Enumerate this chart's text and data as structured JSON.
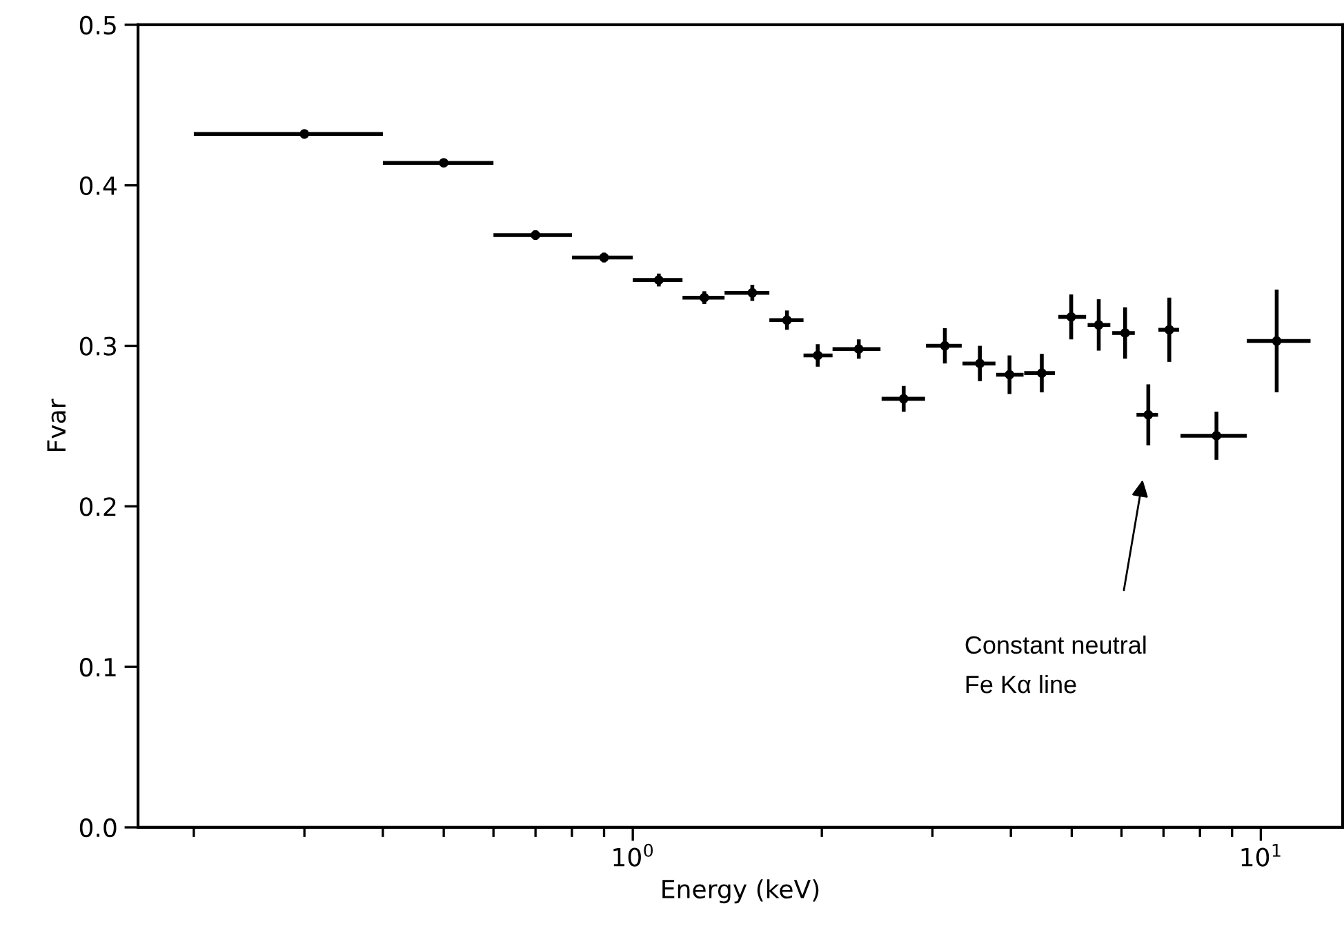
{
  "chart_data": {
    "type": "scatter",
    "xlabel": "Energy (keV)",
    "ylabel": "Fvar",
    "log": "x",
    "x": [
      0.3,
      0.5,
      0.7,
      0.9,
      1.1,
      1.3,
      1.55,
      1.76,
      1.97,
      2.29,
      2.7,
      3.14,
      3.57,
      3.98,
      4.48,
      4.99,
      5.52,
      6.08,
      6.62,
      7.15,
      8.5,
      10.6
    ],
    "series": [
      {
        "color": "#000000",
        "values": [
          0.432,
          0.414,
          0.369,
          0.355,
          0.341,
          0.33,
          0.333,
          0.316,
          0.294,
          0.298,
          0.267,
          0.3,
          0.289,
          0.282,
          0.283,
          0.318,
          0.313,
          0.308,
          0.257,
          0.31,
          0.244,
          0.303
        ],
        "errors": [
          0.002,
          0.002,
          0.003,
          0.003,
          0.004,
          0.004,
          0.005,
          0.006,
          0.007,
          0.006,
          0.008,
          0.011,
          0.011,
          0.012,
          0.012,
          0.014,
          0.016,
          0.016,
          0.019,
          0.02,
          0.015,
          0.032
        ],
        "xerrors": [
          [
            0.2,
            0.4
          ],
          [
            0.4,
            0.6
          ],
          [
            0.6,
            0.8
          ],
          [
            0.8,
            1.0
          ],
          [
            1.0,
            1.2
          ],
          [
            1.2,
            1.4
          ],
          [
            1.4,
            1.65
          ],
          [
            1.65,
            1.87
          ],
          [
            1.87,
            2.08
          ],
          [
            2.08,
            2.48
          ],
          [
            2.49,
            2.92
          ],
          [
            2.93,
            3.34
          ],
          [
            3.35,
            3.78
          ],
          [
            3.79,
            4.19
          ],
          [
            4.2,
            4.7
          ],
          [
            4.76,
            5.27
          ],
          [
            5.3,
            5.76
          ],
          [
            5.8,
            6.3
          ],
          [
            6.34,
            6.86
          ],
          [
            6.87,
            7.41
          ],
          [
            7.45,
            9.5
          ],
          [
            9.5,
            12.0
          ]
        ]
      }
    ],
    "marker": "circle",
    "xlim": [
      0.163,
      13.5
    ],
    "ylim": [
      0.0,
      0.5
    ],
    "xticks": [
      {
        "value": 0.2,
        "label": null
      },
      {
        "value": 0.3,
        "label": null
      },
      {
        "value": 0.4,
        "label": null
      },
      {
        "value": 0.5,
        "label": null
      },
      {
        "value": 0.6,
        "label": null
      },
      {
        "value": 0.7,
        "label": null
      },
      {
        "value": 0.8,
        "label": null
      },
      {
        "value": 0.9,
        "label": null
      },
      {
        "value": 1,
        "label": "10$^{0}$"
      },
      {
        "value": 2,
        "label": null
      },
      {
        "value": 3,
        "label": null
      },
      {
        "value": 4,
        "label": null
      },
      {
        "value": 5,
        "label": null
      },
      {
        "value": 6,
        "label": null
      },
      {
        "value": 7,
        "label": null
      },
      {
        "value": 8,
        "label": null
      },
      {
        "value": 9,
        "label": null
      },
      {
        "value": 10,
        "label": "10$^{1}$"
      }
    ],
    "yticks": [
      {
        "value": 0.0,
        "label": "0.0"
      },
      {
        "value": 0.1,
        "label": "0.1"
      },
      {
        "value": 0.2,
        "label": "0.2"
      },
      {
        "value": 0.3,
        "label": "0.3"
      },
      {
        "value": 0.4,
        "label": "0.4"
      },
      {
        "value": 0.5,
        "label": "0.5"
      }
    ],
    "grid": false,
    "legend": false,
    "annotations": [
      "Constant neutral\nFe Kα line"
    ]
  }
}
